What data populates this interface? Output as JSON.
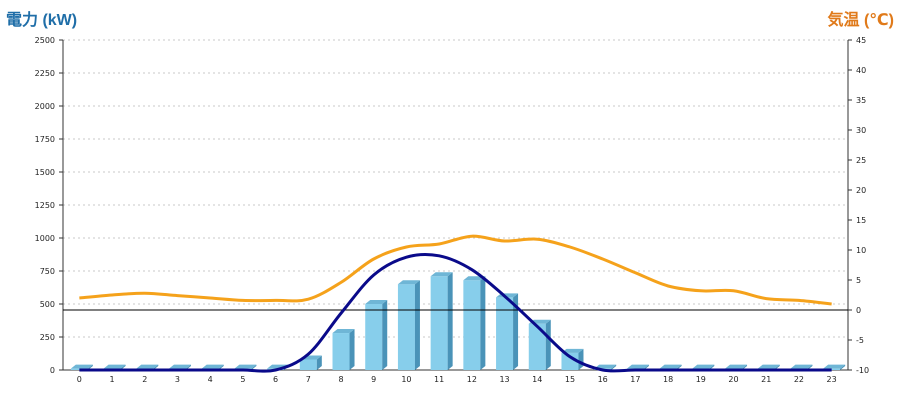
{
  "chart_data": {
    "type": "bar",
    "title": "",
    "xlabel": "",
    "left_axis": {
      "label": "電力 (kW)",
      "min": 0,
      "max": 2500,
      "ticks": [
        0,
        250,
        500,
        750,
        1000,
        1250,
        1500,
        1750,
        2000,
        2250,
        2500
      ]
    },
    "right_axis": {
      "label": "気温 (℃)",
      "min": -10,
      "max": 45,
      "ticks": [
        -10,
        -5,
        0,
        5,
        10,
        15,
        20,
        25,
        30,
        35,
        40,
        45
      ]
    },
    "categories": [
      "0",
      "1",
      "2",
      "3",
      "4",
      "5",
      "6",
      "7",
      "8",
      "9",
      "10",
      "11",
      "12",
      "13",
      "14",
      "15",
      "16",
      "17",
      "18",
      "19",
      "20",
      "21",
      "22",
      "23"
    ],
    "grid": true,
    "series": [
      {
        "type": "bar",
        "axis": "left",
        "color": "#87ceeb",
        "values": [
          10,
          10,
          10,
          10,
          10,
          10,
          10,
          80,
          280,
          500,
          650,
          710,
          680,
          550,
          350,
          130,
          10,
          10,
          10,
          10,
          10,
          10,
          10,
          10
        ]
      },
      {
        "type": "line",
        "axis": "left",
        "color": "#0a0a8a",
        "values": [
          0,
          0,
          0,
          0,
          0,
          0,
          0,
          120,
          430,
          720,
          855,
          865,
          760,
          560,
          330,
          100,
          0,
          0,
          0,
          0,
          0,
          0,
          0,
          0
        ]
      },
      {
        "type": "line",
        "axis": "right",
        "color": "#f5a21b",
        "values": [
          2.0,
          2.5,
          2.8,
          2.4,
          2.0,
          1.6,
          1.6,
          1.8,
          4.6,
          8.5,
          10.5,
          11.0,
          12.3,
          11.5,
          11.8,
          10.5,
          8.5,
          6.2,
          4.0,
          3.2,
          3.2,
          1.9,
          1.6,
          1.0
        ]
      }
    ],
    "reference_line": {
      "axis": "right",
      "value": 0
    }
  }
}
